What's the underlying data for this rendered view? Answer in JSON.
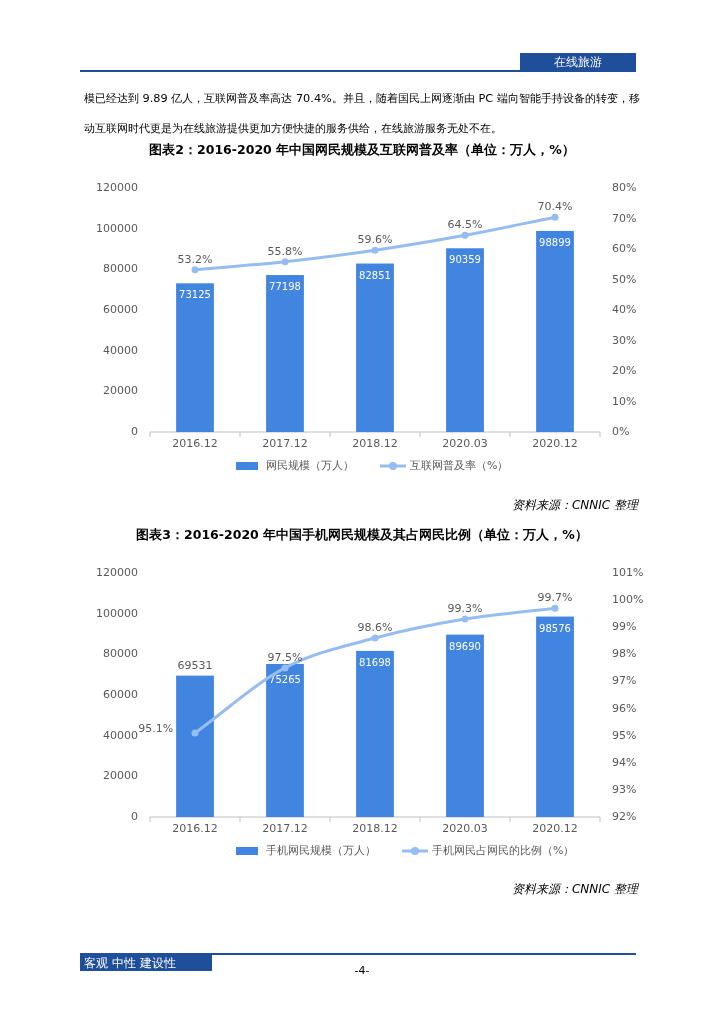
{
  "chart_data": [
    {
      "type": "bar",
      "title": "图表2：2016-2020 年中国网民规模及互联网普及率（单位：万人，%）",
      "categories": [
        "2016.12",
        "2017.12",
        "2018.12",
        "2020.03",
        "2020.12"
      ],
      "series": [
        {
          "name": "网民规模（万人）",
          "color": "#4285e0",
          "values": [
            73125,
            77198,
            82851,
            90359,
            98899
          ]
        },
        {
          "name": "互联网普及率（%）",
          "type": "line",
          "axis": "y2",
          "color": "#96bdf0",
          "values": [
            53.2,
            55.8,
            59.6,
            64.5,
            70.4
          ],
          "value_labels": [
            "53.2%",
            "55.8%",
            "59.6%",
            "64.5%",
            "70.4%"
          ]
        }
      ],
      "ylim": [
        0,
        120000
      ],
      "yticks": [
        0,
        20000,
        40000,
        60000,
        80000,
        100000,
        120000
      ],
      "y2lim": [
        0,
        80
      ],
      "y2ticks": [
        {
          "value": 0,
          "label": "0%"
        },
        {
          "value": 10,
          "label": "10%"
        },
        {
          "value": 20,
          "label": "20%"
        },
        {
          "value": 30,
          "label": "30%"
        },
        {
          "value": 40,
          "label": "40%"
        },
        {
          "value": 50,
          "label": "50%"
        },
        {
          "value": 60,
          "label": "60%"
        },
        {
          "value": 70,
          "label": "70%"
        },
        {
          "value": 80,
          "label": "80%"
        }
      ],
      "data_labels": true,
      "legend": "bottom",
      "marker": "circle",
      "annotations": [
        "在线旅游",
        "模已经达到 9.89 亿人，互联网普及率高达 70.4%。并且，随着国民上网逐渐由 PC 端向智能手持设备的转变，移动互联网时代更是为在线旅游提供更加方便快捷的服务供给，在线旅游服务无处不在。",
        "资料来源：CNNIC 整理"
      ]
    },
    {
      "type": "bar",
      "title": "图表3：2016-2020 年中国手机网民规模及其占网民比例（单位：万人，%）",
      "categories": [
        "2016.12",
        "2017.12",
        "2018.12",
        "2020.03",
        "2020.12"
      ],
      "series": [
        {
          "name": "手机网民规模（万人）",
          "color": "#4285e0",
          "values": [
            69531,
            75265,
            81698,
            89690,
            98576
          ]
        },
        {
          "name": "手机网民占网民的比例（%）",
          "type": "line",
          "axis": "y2",
          "color": "#96bdf0",
          "values": [
            95.1,
            97.5,
            98.6,
            99.3,
            99.7
          ],
          "value_labels": [
            "95.1%",
            "97.5%",
            "98.6%",
            "99.3%",
            "99.7%"
          ]
        }
      ],
      "ylim": [
        0,
        120000
      ],
      "yticks": [
        0,
        20000,
        40000,
        60000,
        80000,
        100000,
        120000
      ],
      "y2lim": [
        92,
        101
      ],
      "y2ticks": [
        {
          "value": 92,
          "label": "92%"
        },
        {
          "value": 93,
          "label": "93%"
        },
        {
          "value": 94,
          "label": "94%"
        },
        {
          "value": 95,
          "label": "95%"
        },
        {
          "value": 96,
          "label": "96%"
        },
        {
          "value": 97,
          "label": "97%"
        },
        {
          "value": 98,
          "label": "98%"
        },
        {
          "value": 99,
          "label": "99%"
        },
        {
          "value": 100,
          "label": "100%"
        },
        {
          "value": 101,
          "label": "101%"
        }
      ],
      "data_labels": true,
      "legend": "bottom",
      "marker": "circle",
      "annotations": [
        "资料来源：CNNIC 整理",
        "客观 中性 建设性",
        "-4-"
      ]
    }
  ]
}
